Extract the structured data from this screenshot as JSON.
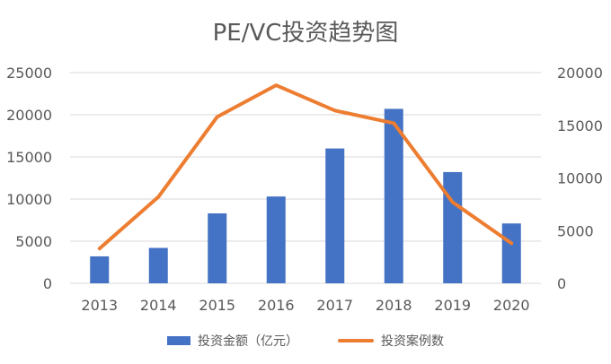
{
  "chart_data": {
    "type": "bar",
    "title": "PE/VC投资趋势图",
    "categories": [
      "2013",
      "2014",
      "2015",
      "2016",
      "2017",
      "2018",
      "2019",
      "2020"
    ],
    "series": [
      {
        "name": "投资金额（亿元）",
        "type": "bar",
        "axis": "left",
        "color": "#4472C4",
        "values": [
          3200,
          4200,
          8300,
          10300,
          16000,
          20700,
          13200,
          7100
        ]
      },
      {
        "name": "投资案例数",
        "type": "line",
        "axis": "right",
        "color": "#ED7D31",
        "values": [
          3300,
          8200,
          15800,
          18800,
          16400,
          15200,
          7700,
          3800
        ]
      }
    ],
    "y_left": {
      "min": 0,
      "max": 25000,
      "ticks": [
        "0",
        "5000",
        "10000",
        "15000",
        "20000",
        "25000"
      ]
    },
    "y_right": {
      "min": 0,
      "max": 20000,
      "ticks": [
        "0",
        "5000",
        "10000",
        "15000",
        "20000"
      ]
    },
    "grid": true,
    "legend_position": "bottom"
  }
}
